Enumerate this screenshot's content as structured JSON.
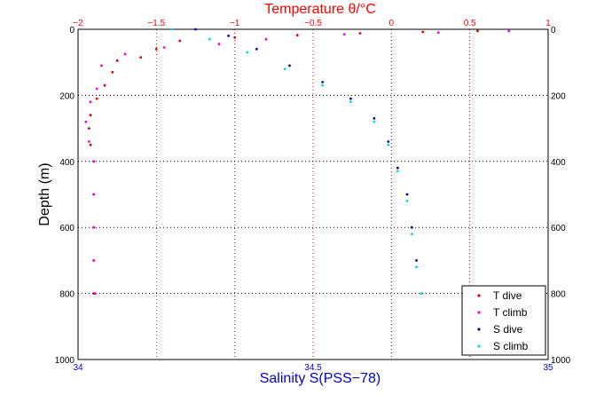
{
  "chart_data": {
    "type": "scatter",
    "title": "",
    "ylabel": "Depth (m)",
    "ylim": [
      0,
      1000
    ],
    "yinverted": true,
    "yticks": [
      "0",
      "200",
      "400",
      "600",
      "800",
      "1000"
    ],
    "xaxis_top": {
      "label": "Temperature θ/°C",
      "lim": [
        -2,
        1
      ],
      "ticks": [
        "−2",
        "−1.5",
        "−1",
        "−0.5",
        "0",
        "0.5",
        "1"
      ],
      "color": "#ff0000"
    },
    "xaxis_bottom": {
      "label": "Salinity S(PSS−78)",
      "lim": [
        34,
        35
      ],
      "ticks": [
        "34",
        "34.5",
        "35"
      ],
      "color": "#0000cc"
    },
    "grid": true,
    "legend_position": "bottom-right",
    "series": [
      {
        "name": "T dive",
        "axis": "top",
        "color": "#dd0000",
        "points": [
          {
            "x": 0.55,
            "y": 5
          },
          {
            "x": 0.2,
            "y": 8
          },
          {
            "x": -0.2,
            "y": 12
          },
          {
            "x": -0.6,
            "y": 18
          },
          {
            "x": -1.0,
            "y": 25
          },
          {
            "x": -1.35,
            "y": 35
          },
          {
            "x": -1.5,
            "y": 60
          },
          {
            "x": -1.6,
            "y": 85
          },
          {
            "x": -1.75,
            "y": 95
          },
          {
            "x": -1.78,
            "y": 130
          },
          {
            "x": -1.83,
            "y": 170
          },
          {
            "x": -1.88,
            "y": 210
          },
          {
            "x": -1.92,
            "y": 260
          },
          {
            "x": -1.93,
            "y": 300
          },
          {
            "x": -1.92,
            "y": 350
          },
          {
            "x": -1.9,
            "y": 400
          },
          {
            "x": -1.9,
            "y": 500
          },
          {
            "x": -1.9,
            "y": 600
          },
          {
            "x": -1.9,
            "y": 700
          },
          {
            "x": -1.9,
            "y": 800
          }
        ]
      },
      {
        "name": "T climb",
        "axis": "top",
        "color": "#ee00ee",
        "points": [
          {
            "x": 0.75,
            "y": 5
          },
          {
            "x": 0.3,
            "y": 10
          },
          {
            "x": -0.3,
            "y": 15
          },
          {
            "x": -0.8,
            "y": 30
          },
          {
            "x": -1.1,
            "y": 45
          },
          {
            "x": -1.45,
            "y": 55
          },
          {
            "x": -1.7,
            "y": 75
          },
          {
            "x": -1.85,
            "y": 110
          },
          {
            "x": -1.88,
            "y": 180
          },
          {
            "x": -1.92,
            "y": 220
          },
          {
            "x": -1.95,
            "y": 280
          },
          {
            "x": -1.93,
            "y": 340
          },
          {
            "x": -1.9,
            "y": 400
          },
          {
            "x": -1.9,
            "y": 500
          },
          {
            "x": -1.9,
            "y": 600
          },
          {
            "x": -1.9,
            "y": 700
          },
          {
            "x": -1.89,
            "y": 800
          }
        ]
      },
      {
        "name": "S dive",
        "axis": "bottom",
        "color": "#0000aa",
        "points": [
          {
            "x": 34.25,
            "y": 0
          },
          {
            "x": 34.32,
            "y": 20
          },
          {
            "x": 34.38,
            "y": 60
          },
          {
            "x": 34.45,
            "y": 110
          },
          {
            "x": 34.52,
            "y": 160
          },
          {
            "x": 34.58,
            "y": 210
          },
          {
            "x": 34.63,
            "y": 270
          },
          {
            "x": 34.66,
            "y": 340
          },
          {
            "x": 34.68,
            "y": 420
          },
          {
            "x": 34.7,
            "y": 500
          },
          {
            "x": 34.71,
            "y": 600
          },
          {
            "x": 34.72,
            "y": 700
          },
          {
            "x": 34.73,
            "y": 800
          }
        ]
      },
      {
        "name": "S climb",
        "axis": "bottom",
        "color": "#00dddd",
        "points": [
          {
            "x": 34.2,
            "y": 0
          },
          {
            "x": 34.28,
            "y": 30
          },
          {
            "x": 34.36,
            "y": 70
          },
          {
            "x": 34.44,
            "y": 120
          },
          {
            "x": 34.52,
            "y": 170
          },
          {
            "x": 34.58,
            "y": 220
          },
          {
            "x": 34.63,
            "y": 280
          },
          {
            "x": 34.66,
            "y": 350
          },
          {
            "x": 34.68,
            "y": 430
          },
          {
            "x": 34.7,
            "y": 520
          },
          {
            "x": 34.71,
            "y": 620
          },
          {
            "x": 34.72,
            "y": 720
          },
          {
            "x": 34.73,
            "y": 800
          }
        ]
      }
    ]
  }
}
